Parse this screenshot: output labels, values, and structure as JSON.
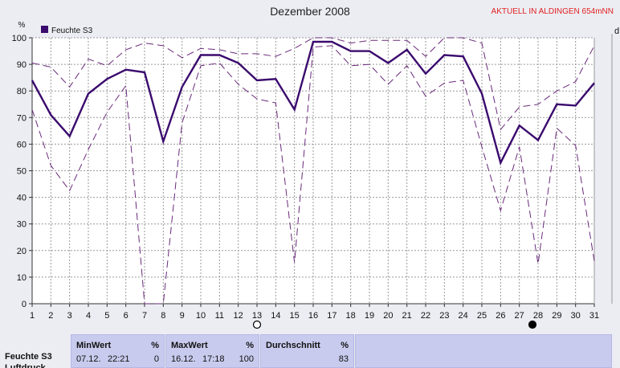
{
  "window": {
    "title": "Dezember 2008",
    "station": "AKTUELL IN ALDINGEN 654mNN"
  },
  "colors": {
    "background": "#ecedf3",
    "plot_bg": "#ffffff",
    "series": "#3a0a6e",
    "minmax": "#6a2a7a",
    "grid": "#9a9a9a",
    "station_text": "#e02020",
    "panel": "#c9cbee"
  },
  "chart_data": {
    "type": "line",
    "title": "Dezember 2008",
    "ylabel": "%",
    "right_label_fragment": "d",
    "ylim": [
      0,
      100
    ],
    "y_ticks": [
      0,
      10,
      20,
      30,
      40,
      50,
      60,
      70,
      80,
      90,
      100
    ],
    "x_ticks": [
      1,
      2,
      3,
      4,
      5,
      6,
      7,
      8,
      9,
      10,
      11,
      12,
      13,
      14,
      15,
      16,
      17,
      18,
      19,
      20,
      21,
      22,
      23,
      24,
      25,
      26,
      27,
      28,
      29,
      30,
      31
    ],
    "grid": true,
    "legend": {
      "position": "top-left",
      "entries": [
        "Feuchte S3"
      ]
    },
    "moon_markers": [
      {
        "day": 13,
        "phase": "full"
      },
      {
        "day": 27.7,
        "phase": "new"
      }
    ],
    "series": [
      {
        "name": "Feuchte S3",
        "style": "solid",
        "values": [
          84,
          71,
          63,
          79,
          84.5,
          88,
          87,
          61,
          81.5,
          93.5,
          93.5,
          90.5,
          84,
          84.5,
          73,
          98.5,
          98.5,
          95,
          95,
          90.5,
          95.5,
          86.5,
          93.5,
          93,
          79,
          53,
          67,
          61.5,
          75,
          74.5,
          83
        ]
      },
      {
        "style": "dashed",
        "values": [
          90.5,
          89,
          81.5,
          92,
          89.5,
          95.5,
          98,
          97,
          92.5,
          96,
          95.5,
          94,
          94,
          93,
          96,
          100,
          100,
          98,
          99,
          99,
          99,
          93,
          100,
          100,
          98,
          65.5,
          74,
          75,
          80,
          83.5,
          97
        ]
      },
      {
        "style": "dashed",
        "values": [
          73,
          52,
          42.5,
          58,
          72,
          82,
          0,
          0,
          68,
          89.5,
          90.5,
          82.5,
          77,
          75.5,
          15.5,
          96.5,
          97,
          89.5,
          90,
          82.5,
          89.5,
          78,
          83,
          84,
          59,
          35,
          59,
          15,
          66,
          59.5,
          16
        ]
      }
    ]
  },
  "stats_panel": {
    "row_label": "Feuchte S3",
    "row_label_2": "Luftdruck",
    "min": {
      "header": "MinWert",
      "unit": "%",
      "date": "07.12.",
      "time": "22:21",
      "value": "0"
    },
    "max": {
      "header": "MaxWert",
      "unit": "%",
      "date": "16.12.",
      "time": "17:18",
      "value": "100"
    },
    "avg": {
      "header": "Durchschnitt",
      "unit": "%",
      "value": "83"
    }
  }
}
